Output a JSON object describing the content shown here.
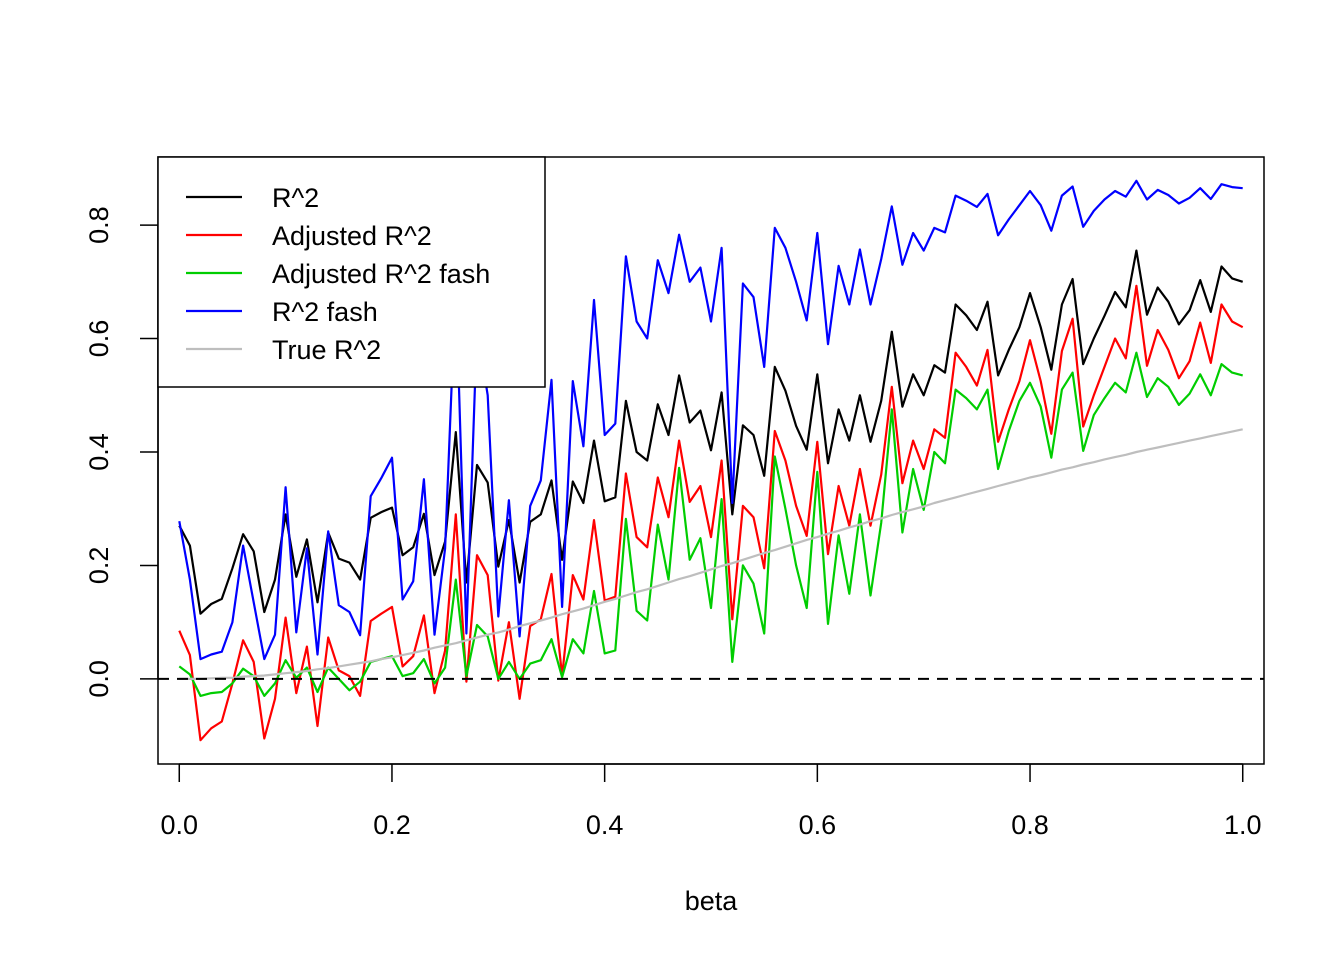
{
  "chart_data": {
    "type": "line",
    "title": "",
    "xlabel": "beta",
    "ylabel": "",
    "xlim": [
      -0.02,
      1.02
    ],
    "ylim": [
      -0.15,
      0.92
    ],
    "xticks": [
      "0.0",
      "0.2",
      "0.4",
      "0.6",
      "0.8",
      "1.0"
    ],
    "yticks": [
      "0.0",
      "0.2",
      "0.4",
      "0.6",
      "0.8"
    ],
    "legend_position": "top-left",
    "x": [
      0.0,
      0.01,
      0.02,
      0.03,
      0.04,
      0.05,
      0.06,
      0.07,
      0.08,
      0.09,
      0.1,
      0.11,
      0.12,
      0.13,
      0.14,
      0.15,
      0.16,
      0.17,
      0.18,
      0.19,
      0.2,
      0.21,
      0.22,
      0.23,
      0.24,
      0.25,
      0.26,
      0.27,
      0.28,
      0.29,
      0.3,
      0.31,
      0.32,
      0.33,
      0.34,
      0.35,
      0.36,
      0.37,
      0.38,
      0.39,
      0.4,
      0.41,
      0.42,
      0.43,
      0.44,
      0.45,
      0.46,
      0.47,
      0.48,
      0.49,
      0.5,
      0.51,
      0.52,
      0.53,
      0.54,
      0.55,
      0.56,
      0.57,
      0.58,
      0.59,
      0.6,
      0.61,
      0.62,
      0.63,
      0.64,
      0.65,
      0.66,
      0.67,
      0.68,
      0.69,
      0.7,
      0.71,
      0.72,
      0.73,
      0.74,
      0.75,
      0.76,
      0.77,
      0.78,
      0.79,
      0.8,
      0.81,
      0.82,
      0.83,
      0.84,
      0.85,
      0.86,
      0.87,
      0.88,
      0.89,
      0.9,
      0.91,
      0.92,
      0.93,
      0.94,
      0.95,
      0.96,
      0.97,
      0.98,
      0.99,
      1.0
    ],
    "series": [
      {
        "name": "R^2",
        "color": "#000000",
        "values": [
          0.27,
          0.235,
          0.115,
          0.132,
          0.141,
          0.195,
          0.255,
          0.225,
          0.118,
          0.175,
          0.29,
          0.18,
          0.246,
          0.135,
          0.258,
          0.212,
          0.205,
          0.175,
          0.284,
          0.294,
          0.302,
          0.218,
          0.232,
          0.291,
          0.183,
          0.242,
          0.435,
          0.17,
          0.377,
          0.346,
          0.198,
          0.28,
          0.17,
          0.277,
          0.29,
          0.35,
          0.21,
          0.348,
          0.31,
          0.42,
          0.313,
          0.32,
          0.49,
          0.4,
          0.385,
          0.484,
          0.43,
          0.535,
          0.452,
          0.473,
          0.403,
          0.505,
          0.29,
          0.447,
          0.43,
          0.358,
          0.55,
          0.508,
          0.446,
          0.404,
          0.537,
          0.38,
          0.475,
          0.42,
          0.5,
          0.418,
          0.49,
          0.612,
          0.48,
          0.537,
          0.5,
          0.553,
          0.54,
          0.66,
          0.641,
          0.615,
          0.665,
          0.535,
          0.58,
          0.62,
          0.68,
          0.62,
          0.545,
          0.66,
          0.705,
          0.555,
          0.6,
          0.64,
          0.682,
          0.655,
          0.755,
          0.642,
          0.69,
          0.665,
          0.625,
          0.65,
          0.703,
          0.647,
          0.727,
          0.706,
          0.7
        ]
      },
      {
        "name": "Adjusted R^2",
        "color": "#ff0000",
        "values": [
          0.085,
          0.042,
          -0.108,
          -0.087,
          -0.075,
          -0.008,
          0.068,
          0.03,
          -0.105,
          -0.035,
          0.108,
          -0.025,
          0.057,
          -0.083,
          0.073,
          0.015,
          0.005,
          -0.03,
          0.102,
          0.115,
          0.127,
          0.022,
          0.04,
          0.112,
          -0.025,
          0.05,
          0.29,
          -0.005,
          0.218,
          0.183,
          -0.003,
          0.1,
          -0.035,
          0.093,
          0.105,
          0.185,
          0.005,
          0.183,
          0.14,
          0.28,
          0.138,
          0.145,
          0.362,
          0.25,
          0.232,
          0.355,
          0.285,
          0.42,
          0.312,
          0.34,
          0.25,
          0.385,
          0.105,
          0.305,
          0.285,
          0.195,
          0.437,
          0.385,
          0.305,
          0.252,
          0.418,
          0.22,
          0.34,
          0.27,
          0.37,
          0.27,
          0.36,
          0.515,
          0.345,
          0.42,
          0.37,
          0.44,
          0.425,
          0.575,
          0.55,
          0.517,
          0.58,
          0.418,
          0.475,
          0.525,
          0.597,
          0.525,
          0.432,
          0.578,
          0.635,
          0.445,
          0.5,
          0.55,
          0.6,
          0.565,
          0.693,
          0.552,
          0.615,
          0.58,
          0.53,
          0.56,
          0.628,
          0.557,
          0.66,
          0.63,
          0.62
        ]
      },
      {
        "name": "Adjusted R^2 fash",
        "color": "#00cd00",
        "values": [
          0.022,
          0.008,
          -0.03,
          -0.025,
          -0.023,
          -0.008,
          0.018,
          0.005,
          -0.03,
          -0.008,
          0.033,
          0.002,
          0.02,
          -0.023,
          0.02,
          0.0,
          -0.02,
          -0.005,
          0.03,
          0.035,
          0.04,
          0.005,
          0.01,
          0.035,
          -0.008,
          0.02,
          0.175,
          0.005,
          0.095,
          0.075,
          0.0,
          0.03,
          0.0,
          0.027,
          0.033,
          0.07,
          0.003,
          0.07,
          0.045,
          0.155,
          0.045,
          0.05,
          0.282,
          0.12,
          0.103,
          0.272,
          0.175,
          0.372,
          0.21,
          0.248,
          0.125,
          0.317,
          0.03,
          0.2,
          0.168,
          0.08,
          0.392,
          0.3,
          0.2,
          0.125,
          0.365,
          0.097,
          0.253,
          0.15,
          0.29,
          0.147,
          0.275,
          0.475,
          0.258,
          0.37,
          0.298,
          0.4,
          0.38,
          0.51,
          0.495,
          0.475,
          0.51,
          0.37,
          0.437,
          0.49,
          0.522,
          0.48,
          0.39,
          0.51,
          0.54,
          0.402,
          0.465,
          0.495,
          0.522,
          0.505,
          0.575,
          0.497,
          0.53,
          0.515,
          0.483,
          0.503,
          0.537,
          0.5,
          0.555,
          0.54,
          0.535
        ]
      },
      {
        "name": "R^2 fash",
        "color": "#0000ff",
        "values": [
          0.278,
          0.175,
          0.035,
          0.043,
          0.048,
          0.1,
          0.235,
          0.135,
          0.035,
          0.078,
          0.338,
          0.082,
          0.23,
          0.043,
          0.26,
          0.13,
          0.118,
          0.077,
          0.322,
          0.354,
          0.39,
          0.14,
          0.172,
          0.352,
          0.078,
          0.23,
          0.7,
          0.08,
          0.62,
          0.5,
          0.11,
          0.315,
          0.075,
          0.305,
          0.35,
          0.527,
          0.127,
          0.525,
          0.41,
          0.668,
          0.43,
          0.45,
          0.745,
          0.63,
          0.6,
          0.738,
          0.68,
          0.783,
          0.7,
          0.725,
          0.63,
          0.76,
          0.31,
          0.697,
          0.673,
          0.55,
          0.795,
          0.76,
          0.7,
          0.632,
          0.786,
          0.59,
          0.728,
          0.66,
          0.757,
          0.66,
          0.74,
          0.833,
          0.73,
          0.786,
          0.755,
          0.795,
          0.787,
          0.852,
          0.843,
          0.832,
          0.855,
          0.782,
          0.81,
          0.835,
          0.86,
          0.835,
          0.79,
          0.852,
          0.868,
          0.797,
          0.825,
          0.845,
          0.86,
          0.85,
          0.878,
          0.845,
          0.862,
          0.853,
          0.838,
          0.848,
          0.865,
          0.846,
          0.872,
          0.867,
          0.865
        ]
      },
      {
        "name": "True R^2",
        "color": "#bebebe",
        "values": [
          0.0,
          0.0,
          0.0,
          0.001,
          0.002,
          0.002,
          0.004,
          0.005,
          0.006,
          0.008,
          0.01,
          0.012,
          0.014,
          0.017,
          0.019,
          0.022,
          0.025,
          0.028,
          0.031,
          0.035,
          0.038,
          0.042,
          0.046,
          0.05,
          0.055,
          0.059,
          0.063,
          0.068,
          0.073,
          0.078,
          0.082,
          0.087,
          0.093,
          0.098,
          0.103,
          0.108,
          0.114,
          0.119,
          0.124,
          0.13,
          0.136,
          0.141,
          0.147,
          0.153,
          0.158,
          0.164,
          0.17,
          0.176,
          0.181,
          0.187,
          0.193,
          0.199,
          0.204,
          0.21,
          0.216,
          0.222,
          0.227,
          0.233,
          0.239,
          0.245,
          0.25,
          0.256,
          0.261,
          0.267,
          0.272,
          0.278,
          0.283,
          0.289,
          0.294,
          0.299,
          0.304,
          0.31,
          0.315,
          0.32,
          0.325,
          0.33,
          0.335,
          0.34,
          0.345,
          0.35,
          0.355,
          0.359,
          0.364,
          0.369,
          0.373,
          0.378,
          0.382,
          0.387,
          0.391,
          0.395,
          0.4,
          0.404,
          0.408,
          0.412,
          0.416,
          0.42,
          0.424,
          0.428,
          0.432,
          0.436,
          0.44
        ]
      }
    ],
    "reference_line": {
      "y": 0,
      "style": "dashed",
      "color": "#000000"
    }
  }
}
